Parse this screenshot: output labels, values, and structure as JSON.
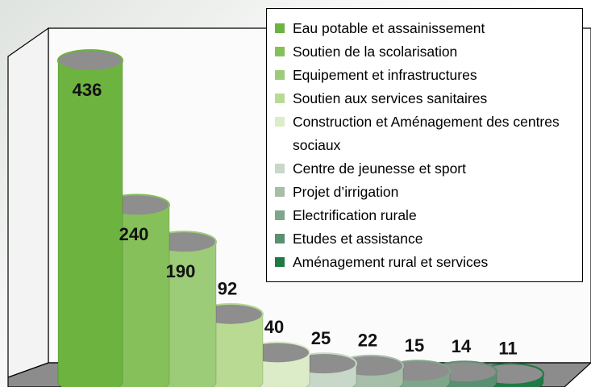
{
  "chart_data": {
    "type": "bar",
    "categories": [
      "Eau potable et assainissement",
      "Soutien de la scolarisation",
      "Equipement et infrastructures",
      "Soutien aux services sanitaires",
      "Construction et Aménagement des centres sociaux",
      "Centre de jeunesse et sport",
      "Projet d’irrigation",
      "Electrification rurale",
      "Etudes et assistance",
      "Aménagement rural et services"
    ],
    "values": [
      436,
      240,
      190,
      92,
      40,
      25,
      22,
      15,
      14,
      11
    ],
    "colors": [
      "#6db33f",
      "#86c05a",
      "#9dcc78",
      "#b9da92",
      "#dcecc8",
      "#c8d8c8",
      "#a6bda8",
      "#7fa68a",
      "#5a9070",
      "#1f7a45"
    ]
  }
}
